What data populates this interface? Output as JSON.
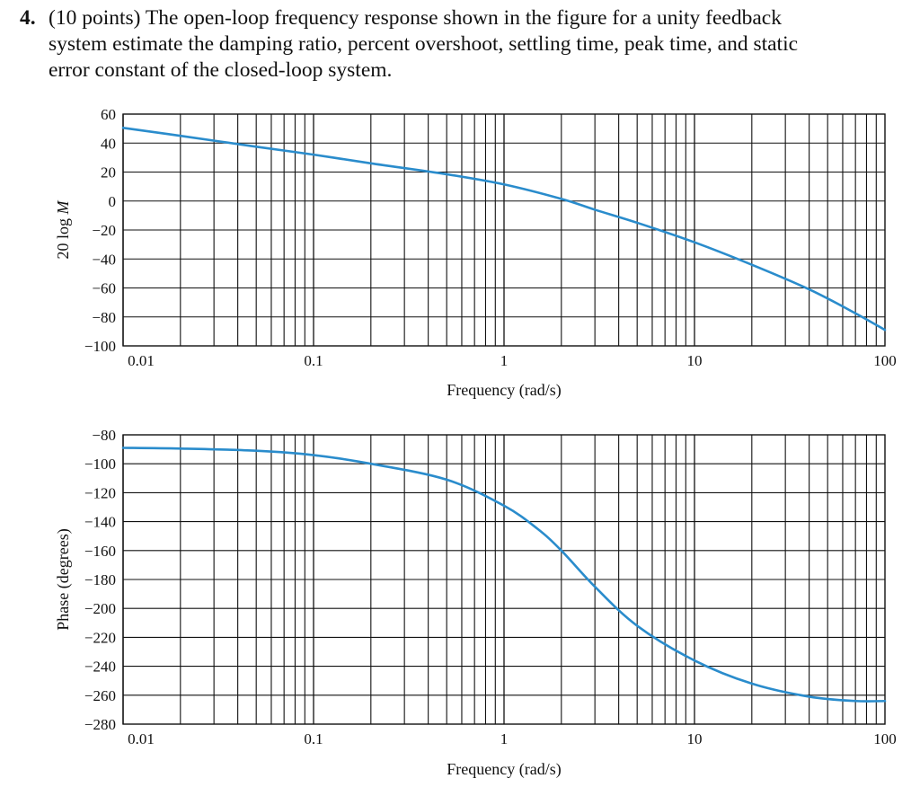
{
  "problem": {
    "number": "4.",
    "line1": "(10 points) The open-loop frequency response shown in the figure for a unity feedback",
    "line2": "system estimate the damping ratio, percent overshoot, settling time, peak time, and static",
    "line3": "error constant of the closed-loop system."
  },
  "colors": {
    "curve": "#2a8ccc",
    "grid": "#111111"
  },
  "chart_data": [
    {
      "type": "line",
      "title": "",
      "xlabel": "Frequency (rad/s)",
      "ylabel_prefix": "20 log ",
      "ylabel_var": "M",
      "xscale": "log",
      "xlim": [
        0.01,
        100
      ],
      "ylim": [
        -100,
        60
      ],
      "grid": true,
      "xticks": [
        0.01,
        0.1,
        1,
        10,
        100
      ],
      "xtick_labels": [
        "0.01",
        "0.1",
        "1",
        "10",
        "100"
      ],
      "yticks": [
        60,
        40,
        20,
        0,
        -20,
        -40,
        -60,
        -80,
        -100
      ],
      "ytick_labels": [
        "60",
        "40",
        "20",
        "0",
        "−20",
        "−40",
        "−60",
        "−80",
        "−100"
      ],
      "series": [
        {
          "x": [
            0.01,
            0.02,
            0.05,
            0.1,
            0.2,
            0.5,
            1,
            2,
            3,
            5,
            10,
            20,
            40,
            70,
            100
          ],
          "y": [
            50.5,
            45,
            37.5,
            32,
            26,
            18.5,
            11.5,
            1.5,
            -6,
            -15,
            -28.5,
            -44,
            -61,
            -77.5,
            -89
          ]
        }
      ]
    },
    {
      "type": "line",
      "title": "",
      "xlabel": "Frequency (rad/s)",
      "ylabel": "Phase (degrees)",
      "xscale": "log",
      "xlim": [
        0.01,
        100
      ],
      "ylim": [
        -280,
        -80
      ],
      "grid": true,
      "xticks": [
        0.01,
        0.1,
        1,
        10,
        100
      ],
      "xtick_labels": [
        "0.01",
        "0.1",
        "1",
        "10",
        "100"
      ],
      "yticks": [
        -80,
        -100,
        -120,
        -140,
        -160,
        -180,
        -200,
        -220,
        -240,
        -260,
        -280
      ],
      "ytick_labels": [
        "−80",
        "−100",
        "−120",
        "−140",
        "−160",
        "−180",
        "−200",
        "−220",
        "−240",
        "−260",
        "−280"
      ],
      "series": [
        {
          "x": [
            0.01,
            0.02,
            0.05,
            0.1,
            0.2,
            0.5,
            1,
            1.5,
            2,
            3,
            5,
            10,
            20,
            40,
            70,
            100
          ],
          "y": [
            -89,
            -89.5,
            -91,
            -94,
            -100,
            -111,
            -129,
            -145,
            -160,
            -185,
            -212,
            -236,
            -252,
            -261,
            -264,
            -264
          ]
        }
      ]
    }
  ]
}
